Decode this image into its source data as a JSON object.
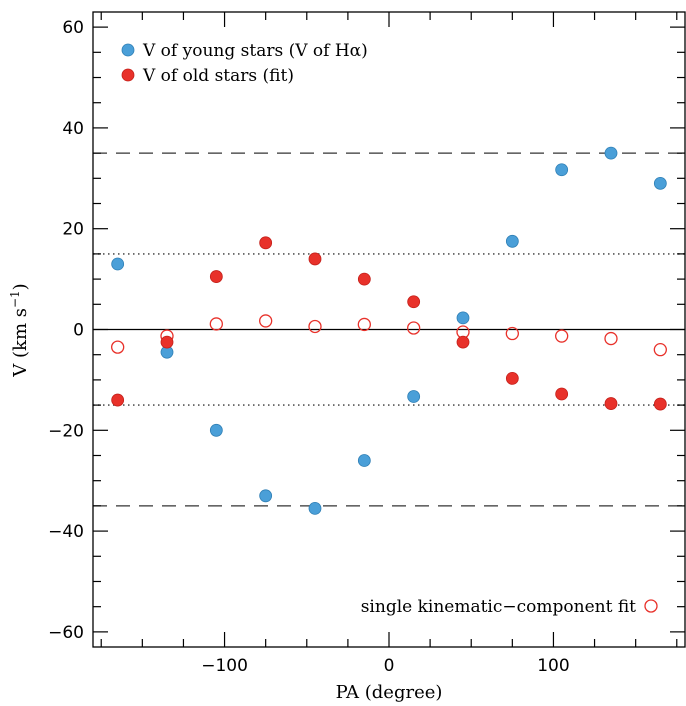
{
  "chart_data": {
    "type": "scatter",
    "xlabel": "PA (degree)",
    "ylabel": "V (km s",
    "ylabel_sup": "−1",
    "ylabel_close": ")",
    "xlim": [
      -180,
      180
    ],
    "ylim": [
      -63,
      63
    ],
    "x_ticks_major": [
      -100,
      0,
      100
    ],
    "x_tick_labels": [
      "−100",
      "0",
      "100"
    ],
    "y_ticks_major": [
      -60,
      -40,
      -20,
      0,
      20,
      40,
      60
    ],
    "y_tick_labels": [
      "−60",
      "−40",
      "−20",
      "0",
      "20",
      "40",
      "60"
    ],
    "reference_lines": [
      {
        "y": 0,
        "style": "solid"
      },
      {
        "y": 15,
        "style": "dotted"
      },
      {
        "y": -15,
        "style": "dotted"
      },
      {
        "y": 35,
        "style": "dashed"
      },
      {
        "y": -35,
        "style": "dashed"
      }
    ],
    "series": [
      {
        "name": "V of young stars (V of Hα)",
        "marker": "filled-circle",
        "color": "#4a9fd8",
        "x": [
          -165,
          -135,
          -105,
          -75,
          -45,
          -15,
          15,
          45,
          75,
          105,
          135,
          165
        ],
        "y": [
          13,
          -4.5,
          -20,
          -33,
          -35.5,
          -26,
          -13.3,
          2.3,
          17.5,
          31.7,
          35,
          29
        ]
      },
      {
        "name": "V of old stars (fit)",
        "marker": "filled-circle",
        "color": "#e8312a",
        "x": [
          -165,
          -135,
          -105,
          -75,
          -45,
          -15,
          15,
          45,
          75,
          105,
          135,
          165
        ],
        "y": [
          -14,
          -2.5,
          10.5,
          17.2,
          14,
          10,
          5.5,
          -2.5,
          -9.7,
          -12.8,
          -14.7,
          -14.8
        ]
      },
      {
        "name": "single kinematic−component fit",
        "marker": "open-circle",
        "color": "#e8312a",
        "x": [
          -165,
          -135,
          -105,
          -75,
          -45,
          -15,
          15,
          45,
          75,
          105,
          135,
          165
        ],
        "y": [
          -3.5,
          -1.3,
          1.1,
          1.7,
          0.6,
          1.0,
          0.3,
          -0.5,
          -0.8,
          -1.3,
          -1.8,
          -4
        ]
      }
    ],
    "legend": {
      "top_left": [
        {
          "label": "V of young stars (V of Hα)",
          "color": "#4a9fd8",
          "marker": "filled-circle"
        },
        {
          "label": "V of old stars (fit)",
          "color": "#e8312a",
          "marker": "filled-circle"
        }
      ],
      "bottom_right": {
        "label": "single kinematic−component fit",
        "color": "#e8312a",
        "marker": "open-circle"
      }
    }
  }
}
